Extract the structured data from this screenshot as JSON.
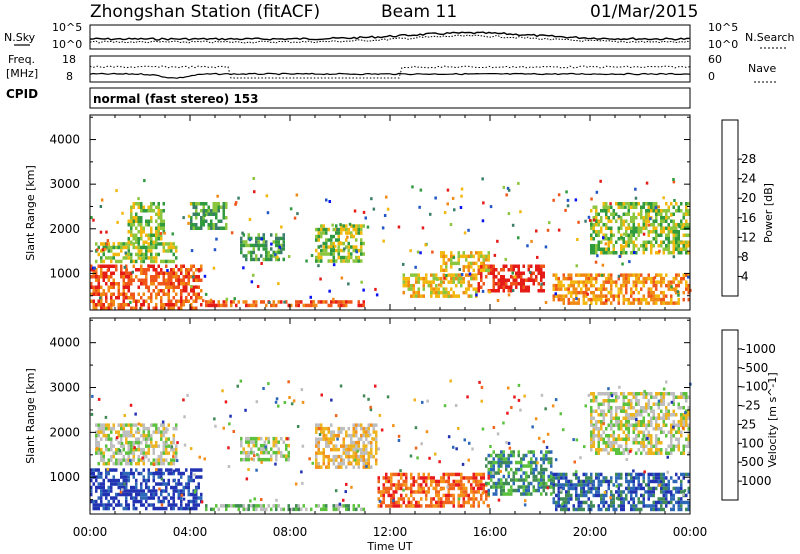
{
  "header": {
    "station": "Zhongshan Station (fitACF)",
    "beam": "Beam 11",
    "date": "01/Mar/2015"
  },
  "sky_panel": {
    "left_label": "N.Sky",
    "right_label": "N.Search",
    "left_ticks": [
      "10^5",
      "10^0"
    ],
    "right_ticks": [
      "10^5",
      "10^0"
    ]
  },
  "freq_panel": {
    "left_label_line1": "Freq.",
    "left_label_line2": "[MHz]",
    "left_ticks": [
      "18",
      "8"
    ],
    "right_label": "Nave",
    "right_ticks": [
      "60",
      "0"
    ]
  },
  "cpid": {
    "label": "CPID",
    "value": "normal (fast stereo) 153"
  },
  "x_axis": {
    "label": "Time UT",
    "ticks": [
      "00:00",
      "04:00",
      "08:00",
      "12:00",
      "16:00",
      "20:00",
      "00:00"
    ]
  },
  "chart_data": [
    {
      "type": "heatmap",
      "title": "",
      "xlabel": "Time UT",
      "ylabel": "Slant Range [km]",
      "x_ticks": [
        "00:00",
        "04:00",
        "08:00",
        "12:00",
        "16:00",
        "20:00",
        "00:00"
      ],
      "y_ticks": [
        1000,
        2000,
        3000,
        4000
      ],
      "xlim_hours": [
        0,
        24
      ],
      "ylim": [
        180,
        4550
      ],
      "colorbar": {
        "label": "Power [dB]",
        "ticks": [
          "4",
          "8",
          "12",
          "16",
          "20",
          "24",
          "28"
        ],
        "colors": [
          "#0a14f0",
          "#2255c8",
          "#3a7e6a",
          "#2f9a3e",
          "#8cc63e",
          "#f3b80e",
          "#f08a14",
          "#f0561a",
          "#e51b17"
        ]
      },
      "echo_regions": [
        {
          "t": [
            0.0,
            4.5
          ],
          "r": [
            250,
            1200
          ],
          "level": 7
        },
        {
          "t": [
            4.5,
            11.0
          ],
          "r": [
            250,
            400
          ],
          "level": 7
        },
        {
          "t": [
            0.2,
            3.5
          ],
          "r": [
            1300,
            1700
          ],
          "level": 4
        },
        {
          "t": [
            1.5,
            3.0
          ],
          "r": [
            1700,
            2600
          ],
          "level": 4
        },
        {
          "t": [
            4.0,
            5.5
          ],
          "r": [
            2000,
            2600
          ],
          "level": 3
        },
        {
          "t": [
            6.0,
            7.8
          ],
          "r": [
            1300,
            1900
          ],
          "level": 3
        },
        {
          "t": [
            9.0,
            11.0
          ],
          "r": [
            1300,
            2100
          ],
          "level": 4
        },
        {
          "t": [
            12.5,
            15.5
          ],
          "r": [
            500,
            1000
          ],
          "level": 5
        },
        {
          "t": [
            15.5,
            18.2
          ],
          "r": [
            600,
            1200
          ],
          "level": 8
        },
        {
          "t": [
            18.5,
            24.0
          ],
          "r": [
            300,
            1000
          ],
          "level": 6
        },
        {
          "t": [
            20.0,
            24.0
          ],
          "r": [
            1500,
            2600
          ],
          "level": 4
        },
        {
          "t": [
            14.0,
            16.0
          ],
          "r": [
            1100,
            1500
          ],
          "level": 5
        }
      ]
    },
    {
      "type": "heatmap",
      "title": "",
      "xlabel": "Time UT",
      "ylabel": "Slant Range [km]",
      "x_ticks": [
        "00:00",
        "04:00",
        "08:00",
        "12:00",
        "16:00",
        "20:00",
        "00:00"
      ],
      "y_ticks": [
        1000,
        2000,
        3000,
        4000
      ],
      "xlim_hours": [
        0,
        24
      ],
      "ylim": [
        180,
        4550
      ],
      "colorbar": {
        "label": "Velocity [m s^-1]",
        "ticks": [
          "1000",
          "500",
          "100",
          "25",
          "-25",
          "-100",
          "-500",
          "-1000"
        ],
        "colors": [
          "#2133b2",
          "#2d68b8",
          "#3f8a55",
          "#5cc23e",
          "#bebebe",
          "#eeb41e",
          "#f4921a",
          "#f0641c",
          "#e8181c"
        ]
      },
      "echo_regions": [
        {
          "t": [
            0.0,
            4.5
          ],
          "r": [
            300,
            1200
          ],
          "level": 0
        },
        {
          "t": [
            4.5,
            11.0
          ],
          "r": [
            250,
            400
          ],
          "level": 3
        },
        {
          "t": [
            0.2,
            3.5
          ],
          "r": [
            1300,
            2200
          ],
          "level": 4
        },
        {
          "t": [
            9.0,
            11.5
          ],
          "r": [
            1200,
            2200
          ],
          "level": 5
        },
        {
          "t": [
            11.5,
            16.0
          ],
          "r": [
            350,
            1100
          ],
          "level": 7
        },
        {
          "t": [
            15.8,
            18.5
          ],
          "r": [
            600,
            1600
          ],
          "level": 2
        },
        {
          "t": [
            18.5,
            24.0
          ],
          "r": [
            300,
            1100
          ],
          "level": 1
        },
        {
          "t": [
            20.0,
            24.0
          ],
          "r": [
            1500,
            2900
          ],
          "level": 4
        },
        {
          "t": [
            6.0,
            8.0
          ],
          "r": [
            1400,
            1900
          ],
          "level": 4
        }
      ]
    }
  ]
}
